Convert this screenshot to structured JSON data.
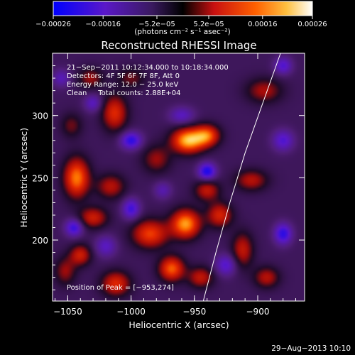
{
  "chart_data": {
    "type": "heatmap",
    "title": "Reconstructed RHESSI Image",
    "xlabel": "Heliocentric X (arcsec)",
    "ylabel": "Heliocentric Y (arcsec)",
    "xlim": [
      -1062,
      -863
    ],
    "ylim": [
      151,
      350
    ],
    "x_ticks": [
      -1050,
      -1000,
      -950,
      -900
    ],
    "x_tick_labels": [
      "−1050",
      "−1000",
      "−950",
      "−900"
    ],
    "y_ticks": [
      200,
      250,
      300
    ],
    "y_tick_labels": [
      "200",
      "250",
      "300"
    ],
    "colorbar": {
      "min": -0.00026,
      "max": 0.00026,
      "ticks": [
        -0.00026,
        -0.00016,
        -5.2e-05,
        5.2e-05,
        0.00016,
        0.00026
      ],
      "tick_labels": [
        "−0.00026",
        "−0.00016",
        "−5.2e−05",
        "5.2e−05",
        "0.00016",
        "0.00026"
      ],
      "units_label": "(photons cm⁻² s⁻¹ asec⁻²)"
    },
    "annotations": [
      "21−Sep−2011 10:12:34.000 to 10:18:34.000",
      "Detectors: 4F 5F 6F 7F 8F, Att 0",
      "Energy Range: 12.0 − 25.0 keV",
      "Clean     Total counts: 2.88E+04"
    ],
    "peak_label": "Position of Peak = [−953,274]",
    "peak_position": [
      -953,
      274
    ],
    "sources": [
      {
        "x": -955,
        "y": 280,
        "value": 0.00026,
        "sx": 9,
        "sy": 7
      },
      {
        "x": -940,
        "y": 284,
        "value": 0.00019,
        "sx": 7,
        "sy": 6
      },
      {
        "x": -1043,
        "y": 250,
        "value": 0.00022,
        "sx": 7,
        "sy": 11
      },
      {
        "x": -1013,
        "y": 302,
        "value": 0.00016,
        "sx": 7,
        "sy": 10
      },
      {
        "x": -1016,
        "y": 243,
        "value": 0.00012,
        "sx": 8,
        "sy": 7
      },
      {
        "x": -1032,
        "y": 330,
        "value": 0.0001,
        "sx": 7,
        "sy": 6
      },
      {
        "x": -1030,
        "y": 218,
        "value": 0.00014,
        "sx": 8,
        "sy": 6
      },
      {
        "x": -1040,
        "y": 188,
        "value": 0.00014,
        "sx": 6,
        "sy": 6
      },
      {
        "x": -1012,
        "y": 165,
        "value": 0.00016,
        "sx": 8,
        "sy": 7
      },
      {
        "x": -985,
        "y": 205,
        "value": 0.00018,
        "sx": 10,
        "sy": 8
      },
      {
        "x": -957,
        "y": 213,
        "value": 0.00024,
        "sx": 8,
        "sy": 8
      },
      {
        "x": -968,
        "y": 177,
        "value": 0.0002,
        "sx": 7,
        "sy": 7
      },
      {
        "x": -945,
        "y": 170,
        "value": 0.00013,
        "sx": 7,
        "sy": 6
      },
      {
        "x": -930,
        "y": 220,
        "value": 0.00015,
        "sx": 7,
        "sy": 7
      },
      {
        "x": -912,
        "y": 192,
        "value": 0.00013,
        "sx": 6,
        "sy": 10
      },
      {
        "x": -905,
        "y": 248,
        "value": 0.00012,
        "sx": 9,
        "sy": 6
      },
      {
        "x": -940,
        "y": 240,
        "value": 0.00013,
        "sx": 7,
        "sy": 6
      },
      {
        "x": -980,
        "y": 265,
        "value": 0.0001,
        "sx": 8,
        "sy": 8
      },
      {
        "x": -895,
        "y": 320,
        "value": 0.00011,
        "sx": 10,
        "sy": 7
      },
      {
        "x": -893,
        "y": 170,
        "value": 0.00012,
        "sx": 7,
        "sy": 6
      },
      {
        "x": -1000,
        "y": 330,
        "value": 8e-05,
        "sx": 8,
        "sy": 6
      },
      {
        "x": -1047,
        "y": 292,
        "value": 8e-05,
        "sx": 6,
        "sy": 7
      },
      {
        "x": -1052,
        "y": 175,
        "value": 0.0001,
        "sx": 6,
        "sy": 8
      },
      {
        "x": -940,
        "y": 255,
        "value": -0.00018,
        "sx": 5,
        "sy": 5
      },
      {
        "x": -1000,
        "y": 280,
        "value": -0.00016,
        "sx": 6,
        "sy": 5
      },
      {
        "x": -1045,
        "y": 210,
        "value": -0.00015,
        "sx": 5,
        "sy": 5
      },
      {
        "x": -1000,
        "y": 225,
        "value": -0.00014,
        "sx": 5,
        "sy": 6
      },
      {
        "x": -960,
        "y": 300,
        "value": -0.0001,
        "sx": 7,
        "sy": 5
      },
      {
        "x": -880,
        "y": 205,
        "value": -0.00016,
        "sx": 5,
        "sy": 6
      },
      {
        "x": -925,
        "y": 180,
        "value": -0.00012,
        "sx": 6,
        "sy": 6
      },
      {
        "x": -1020,
        "y": 195,
        "value": -0.0001,
        "sx": 6,
        "sy": 6
      },
      {
        "x": -880,
        "y": 280,
        "value": -0.00012,
        "sx": 6,
        "sy": 6
      },
      {
        "x": -1030,
        "y": 310,
        "value": -0.0001,
        "sx": 5,
        "sy": 5
      },
      {
        "x": -880,
        "y": 340,
        "value": -0.00012,
        "sx": 5,
        "sy": 5
      },
      {
        "x": -975,
        "y": 240,
        "value": -8e-05,
        "sx": 5,
        "sy": 5
      },
      {
        "x": -1055,
        "y": 330,
        "value": -9e-05,
        "sx": 5,
        "sy": 5
      }
    ],
    "limb_curve": [
      [
        -943,
        151
      ],
      [
        -933,
        190
      ],
      [
        -922,
        230
      ],
      [
        -910,
        270
      ],
      [
        -896,
        310
      ],
      [
        -882,
        350
      ]
    ],
    "grid": false,
    "colormap": "rhessi-signed (blue-purple-black-red-orange-yellow-white)"
  },
  "footer": {
    "date": "29−Aug−2013 10:10"
  }
}
